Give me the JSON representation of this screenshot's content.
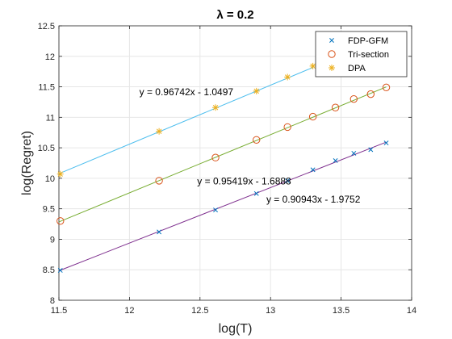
{
  "chart_data": {
    "type": "scatter",
    "title": "λ = 0.2",
    "xlabel": "log(T)",
    "ylabel": "log(Regret)",
    "xlim": [
      11.5,
      14
    ],
    "ylim": [
      8,
      12.5
    ],
    "xticks": [
      "11.5",
      "12",
      "12.5",
      "13",
      "13.5",
      "14"
    ],
    "yticks": [
      "8",
      "8.5",
      "9",
      "9.5",
      "10",
      "10.5",
      "11",
      "11.5",
      "12",
      "12.5"
    ],
    "grid": true,
    "legend_position": "top-right",
    "series": [
      {
        "name": "FDP-GFM",
        "marker": "x",
        "color": "#0072bd",
        "x": [
          11.51,
          12.21,
          12.61,
          12.9,
          13.12,
          13.3,
          13.46,
          13.59,
          13.71,
          13.82
        ],
        "y": [
          8.49,
          9.12,
          9.48,
          9.75,
          9.96,
          10.14,
          10.29,
          10.41,
          10.47,
          10.58
        ]
      },
      {
        "name": "Tri-section",
        "marker": "o",
        "color": "#d95319",
        "x": [
          11.51,
          12.21,
          12.61,
          12.9,
          13.12,
          13.3,
          13.46,
          13.59,
          13.71,
          13.82
        ],
        "y": [
          9.3,
          9.96,
          10.34,
          10.63,
          10.84,
          11.01,
          11.16,
          11.3,
          11.38,
          11.49
        ]
      },
      {
        "name": "DPA",
        "marker": "*",
        "color": "#edb120",
        "x": [
          11.51,
          12.21,
          12.61,
          12.9,
          13.12,
          13.3
        ],
        "y": [
          10.07,
          10.77,
          11.16,
          11.43,
          11.66,
          11.84
        ]
      }
    ],
    "fit_lines": [
      {
        "slope": 0.90943,
        "intercept": -1.9752,
        "x_range": [
          11.5,
          13.82
        ],
        "color": "#7e2f8e"
      },
      {
        "slope": 0.95419,
        "intercept": -1.6888,
        "x_range": [
          11.5,
          13.82
        ],
        "color": "#77ac30"
      },
      {
        "slope": 0.96742,
        "intercept": -1.0497,
        "x_range": [
          11.5,
          13.3
        ],
        "color": "#4dbeee"
      }
    ],
    "annotations": [
      {
        "text": "y = 0.96742x - 1.0497",
        "x": 12.07,
        "y": 11.36
      },
      {
        "text": "y = 0.95419x - 1.6888",
        "x": 12.48,
        "y": 9.9
      },
      {
        "text": "y = 0.90943x - 1.9752",
        "x": 12.97,
        "y": 9.6
      }
    ]
  }
}
